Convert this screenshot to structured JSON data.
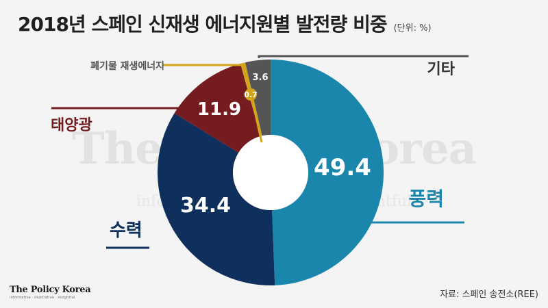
{
  "header": {
    "title": "2018년 스페인 신재생 에너지원별 발전량 비중",
    "unit": "(단위: %)"
  },
  "watermark": {
    "main": "The Policy Korea",
    "sub": "informative · industrious · insightful"
  },
  "footer": {
    "brand": "The Policy Korea",
    "brand_tagline": "informative · illustrative · insightful",
    "source": "자료: 스페인 송전소(REE)"
  },
  "chart_data": {
    "type": "pie",
    "style": "donut",
    "start_angle_deg": 0,
    "direction": "clockwise",
    "categories": [
      "풍력",
      "수력",
      "태양광",
      "폐기물 재생에너지",
      "기타"
    ],
    "values": [
      49.4,
      34.4,
      11.9,
      0.7,
      3.6
    ],
    "value_labels": [
      "49.4",
      "34.4",
      "11.9",
      "0.7",
      "3.6"
    ],
    "colors": [
      "#1a86ab",
      "#0f2f5c",
      "#741c1f",
      "#d4a51c",
      "#555555"
    ],
    "label_colors": [
      "#1a86ab",
      "#0f2f5c",
      "#741c1f",
      "#555555",
      "#333333"
    ],
    "leader_colors": [
      "#1a86ab",
      "#0f2f5c",
      "#741c1f",
      "#d4a51c",
      "#555555"
    ],
    "title": "2018년 스페인 신재생 에너지원별 발전량 비중",
    "legend": "none"
  }
}
